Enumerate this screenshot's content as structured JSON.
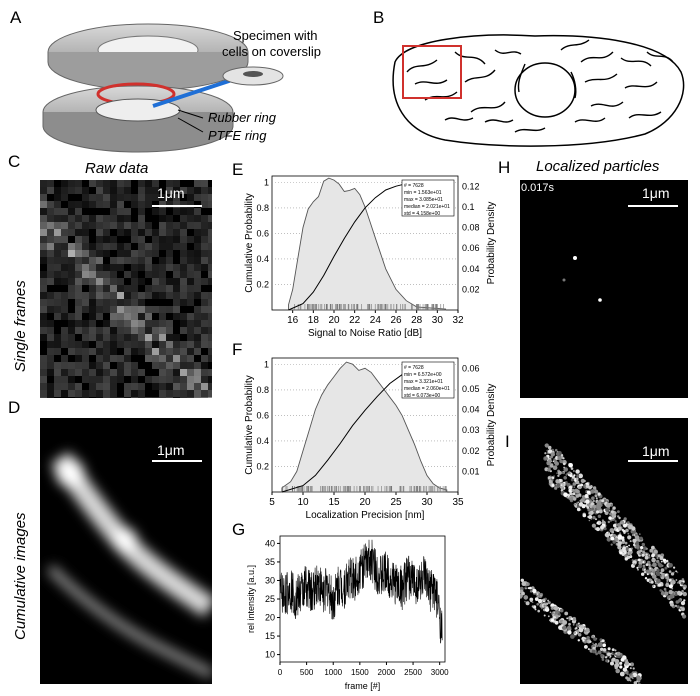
{
  "panels": {
    "A": {
      "label": "A",
      "specimen_text_line1": "Specimen with",
      "specimen_text_line2": "cells on coverslip",
      "rubber_ring": "Rubber ring",
      "ptfe_ring": "PTFE ring"
    },
    "B": {
      "label": "B"
    },
    "C": {
      "label": "C",
      "header": "Raw data",
      "side_label": "Single frames",
      "scalebar": "1μm"
    },
    "D": {
      "label": "D",
      "side_label": "Cumulative images",
      "scalebar": "1μm"
    },
    "E": {
      "label": "E",
      "xlabel": "Signal to Noise Ratio [dB]",
      "ylabel_left": "Cumulative Probability",
      "ylabel_right": "Probability Density",
      "xticks": [
        "16",
        "18",
        "20",
        "22",
        "24",
        "26",
        "28",
        "30",
        "32"
      ],
      "yticks_left": [
        "0.2",
        "0.4",
        "0.6",
        "0.8",
        "1"
      ],
      "yticks_right": [
        "0.02",
        "0.04",
        "0.06",
        "0.08",
        "0.1",
        "0.12"
      ],
      "legend": [
        "# = 7628",
        "min = 1.563e+01",
        "max = 3.085e+01",
        "median = 2.021e+01",
        "std = 4.158e+00"
      ]
    },
    "F": {
      "label": "F",
      "xlabel": "Localization Precision [nm]",
      "ylabel_left": "Cumulative Probability",
      "ylabel_right": "Probability Density",
      "xticks": [
        "5",
        "10",
        "15",
        "20",
        "25",
        "30",
        "35"
      ],
      "yticks_left": [
        "0.2",
        "0.4",
        "0.6",
        "0.8",
        "1"
      ],
      "yticks_right": [
        "0.01",
        "0.02",
        "0.03",
        "0.04",
        "0.05",
        "0.06"
      ],
      "legend": [
        "# = 7628",
        "min = 6.572e+00",
        "max = 3.321e+01",
        "median = 2.060e+01",
        "std = 6.073e+00"
      ]
    },
    "G": {
      "label": "G",
      "xlabel": "frame [#]",
      "ylabel": "rel intensity [a.u.]",
      "xticks": [
        "0",
        "500",
        "1000",
        "1500",
        "2000",
        "2500",
        "3000"
      ],
      "yticks": [
        "10",
        "15",
        "20",
        "25",
        "30",
        "35",
        "40"
      ]
    },
    "H": {
      "label": "H",
      "header": "Localized particles",
      "time": "0.017s",
      "scalebar": "1μm"
    },
    "I": {
      "label": "I",
      "scalebar": "1μm"
    }
  },
  "chart_data": [
    {
      "type": "area",
      "panel": "E",
      "xlabel": "Signal to Noise Ratio [dB]",
      "ylabel": "Cumulative Probability",
      "xlim": [
        14,
        32
      ],
      "ylim": [
        0,
        1.05
      ],
      "ylim_right": [
        0,
        0.13
      ],
      "series": [
        {
          "name": "",
          "x": [
            15.6,
            16,
            16.5,
            17,
            17.5,
            18,
            18.5,
            19,
            19.5,
            20,
            20.5,
            21,
            21.5,
            22,
            22.5,
            23,
            23.5,
            24,
            24.5,
            25,
            25.5,
            26,
            27,
            28,
            30.8
          ],
          "values": [
            0.005,
            0.02,
            0.05,
            0.08,
            0.098,
            0.105,
            0.11,
            0.125,
            0.128,
            0.126,
            0.122,
            0.115,
            0.116,
            0.118,
            0.112,
            0.1,
            0.085,
            0.07,
            0.055,
            0.04,
            0.03,
            0.02,
            0.009,
            0.003,
            0.001
          ]
        },
        {
          "name": "",
          "x": [
            15.6,
            17,
            18,
            19,
            20,
            21,
            22,
            23,
            24,
            25,
            26,
            27,
            28,
            30.8
          ],
          "values": [
            0,
            0.05,
            0.14,
            0.27,
            0.42,
            0.56,
            0.69,
            0.8,
            0.88,
            0.94,
            0.97,
            0.99,
            1.0,
            1.0
          ]
        }
      ]
    },
    {
      "type": "area",
      "panel": "F",
      "xlabel": "Localization Precision [nm]",
      "ylabel": "Cumulative Probability",
      "xlim": [
        5,
        35
      ],
      "ylim": [
        0,
        1.05
      ],
      "ylim_right": [
        0,
        0.065
      ],
      "series": [
        {
          "name": "",
          "x": [
            6.6,
            8,
            9,
            10,
            11,
            12,
            13,
            14,
            15,
            16,
            17,
            18,
            19,
            20,
            21,
            22,
            23,
            24,
            25,
            26,
            27,
            28,
            29,
            30,
            31,
            32,
            33.2
          ],
          "values": [
            0.002,
            0.005,
            0.01,
            0.02,
            0.03,
            0.04,
            0.047,
            0.052,
            0.056,
            0.06,
            0.063,
            0.062,
            0.059,
            0.06,
            0.058,
            0.054,
            0.05,
            0.046,
            0.042,
            0.037,
            0.03,
            0.023,
            0.015,
            0.008,
            0.004,
            0.002,
            0.001
          ]
        },
        {
          "name": "",
          "x": [
            6.6,
            10,
            12,
            14,
            16,
            18,
            20,
            22,
            24,
            26,
            28,
            30,
            32,
            33.2
          ],
          "values": [
            0,
            0.05,
            0.13,
            0.25,
            0.38,
            0.52,
            0.64,
            0.75,
            0.85,
            0.92,
            0.97,
            0.99,
            1.0,
            1.0
          ]
        }
      ]
    },
    {
      "type": "line",
      "panel": "G",
      "xlabel": "frame [#]",
      "ylabel": "rel intensity [a.u.]",
      "xlim": [
        0,
        3100
      ],
      "ylim": [
        8,
        42
      ],
      "series": [
        {
          "name": "",
          "x": [
            0,
            100,
            200,
            300,
            400,
            500,
            600,
            700,
            800,
            900,
            1000,
            1100,
            1200,
            1300,
            1400,
            1500,
            1600,
            1700,
            1800,
            1900,
            2000,
            2100,
            2200,
            2300,
            2400,
            2500,
            2600,
            2700,
            2800,
            2900,
            3000,
            3050
          ],
          "values": [
            27,
            26,
            28,
            25,
            27,
            29,
            26,
            30,
            27,
            28,
            24,
            29,
            28,
            31,
            30,
            33,
            34,
            36,
            33,
            31,
            32,
            30,
            29,
            28,
            31,
            30,
            29,
            31,
            27,
            28,
            21,
            15
          ]
        }
      ]
    }
  ]
}
